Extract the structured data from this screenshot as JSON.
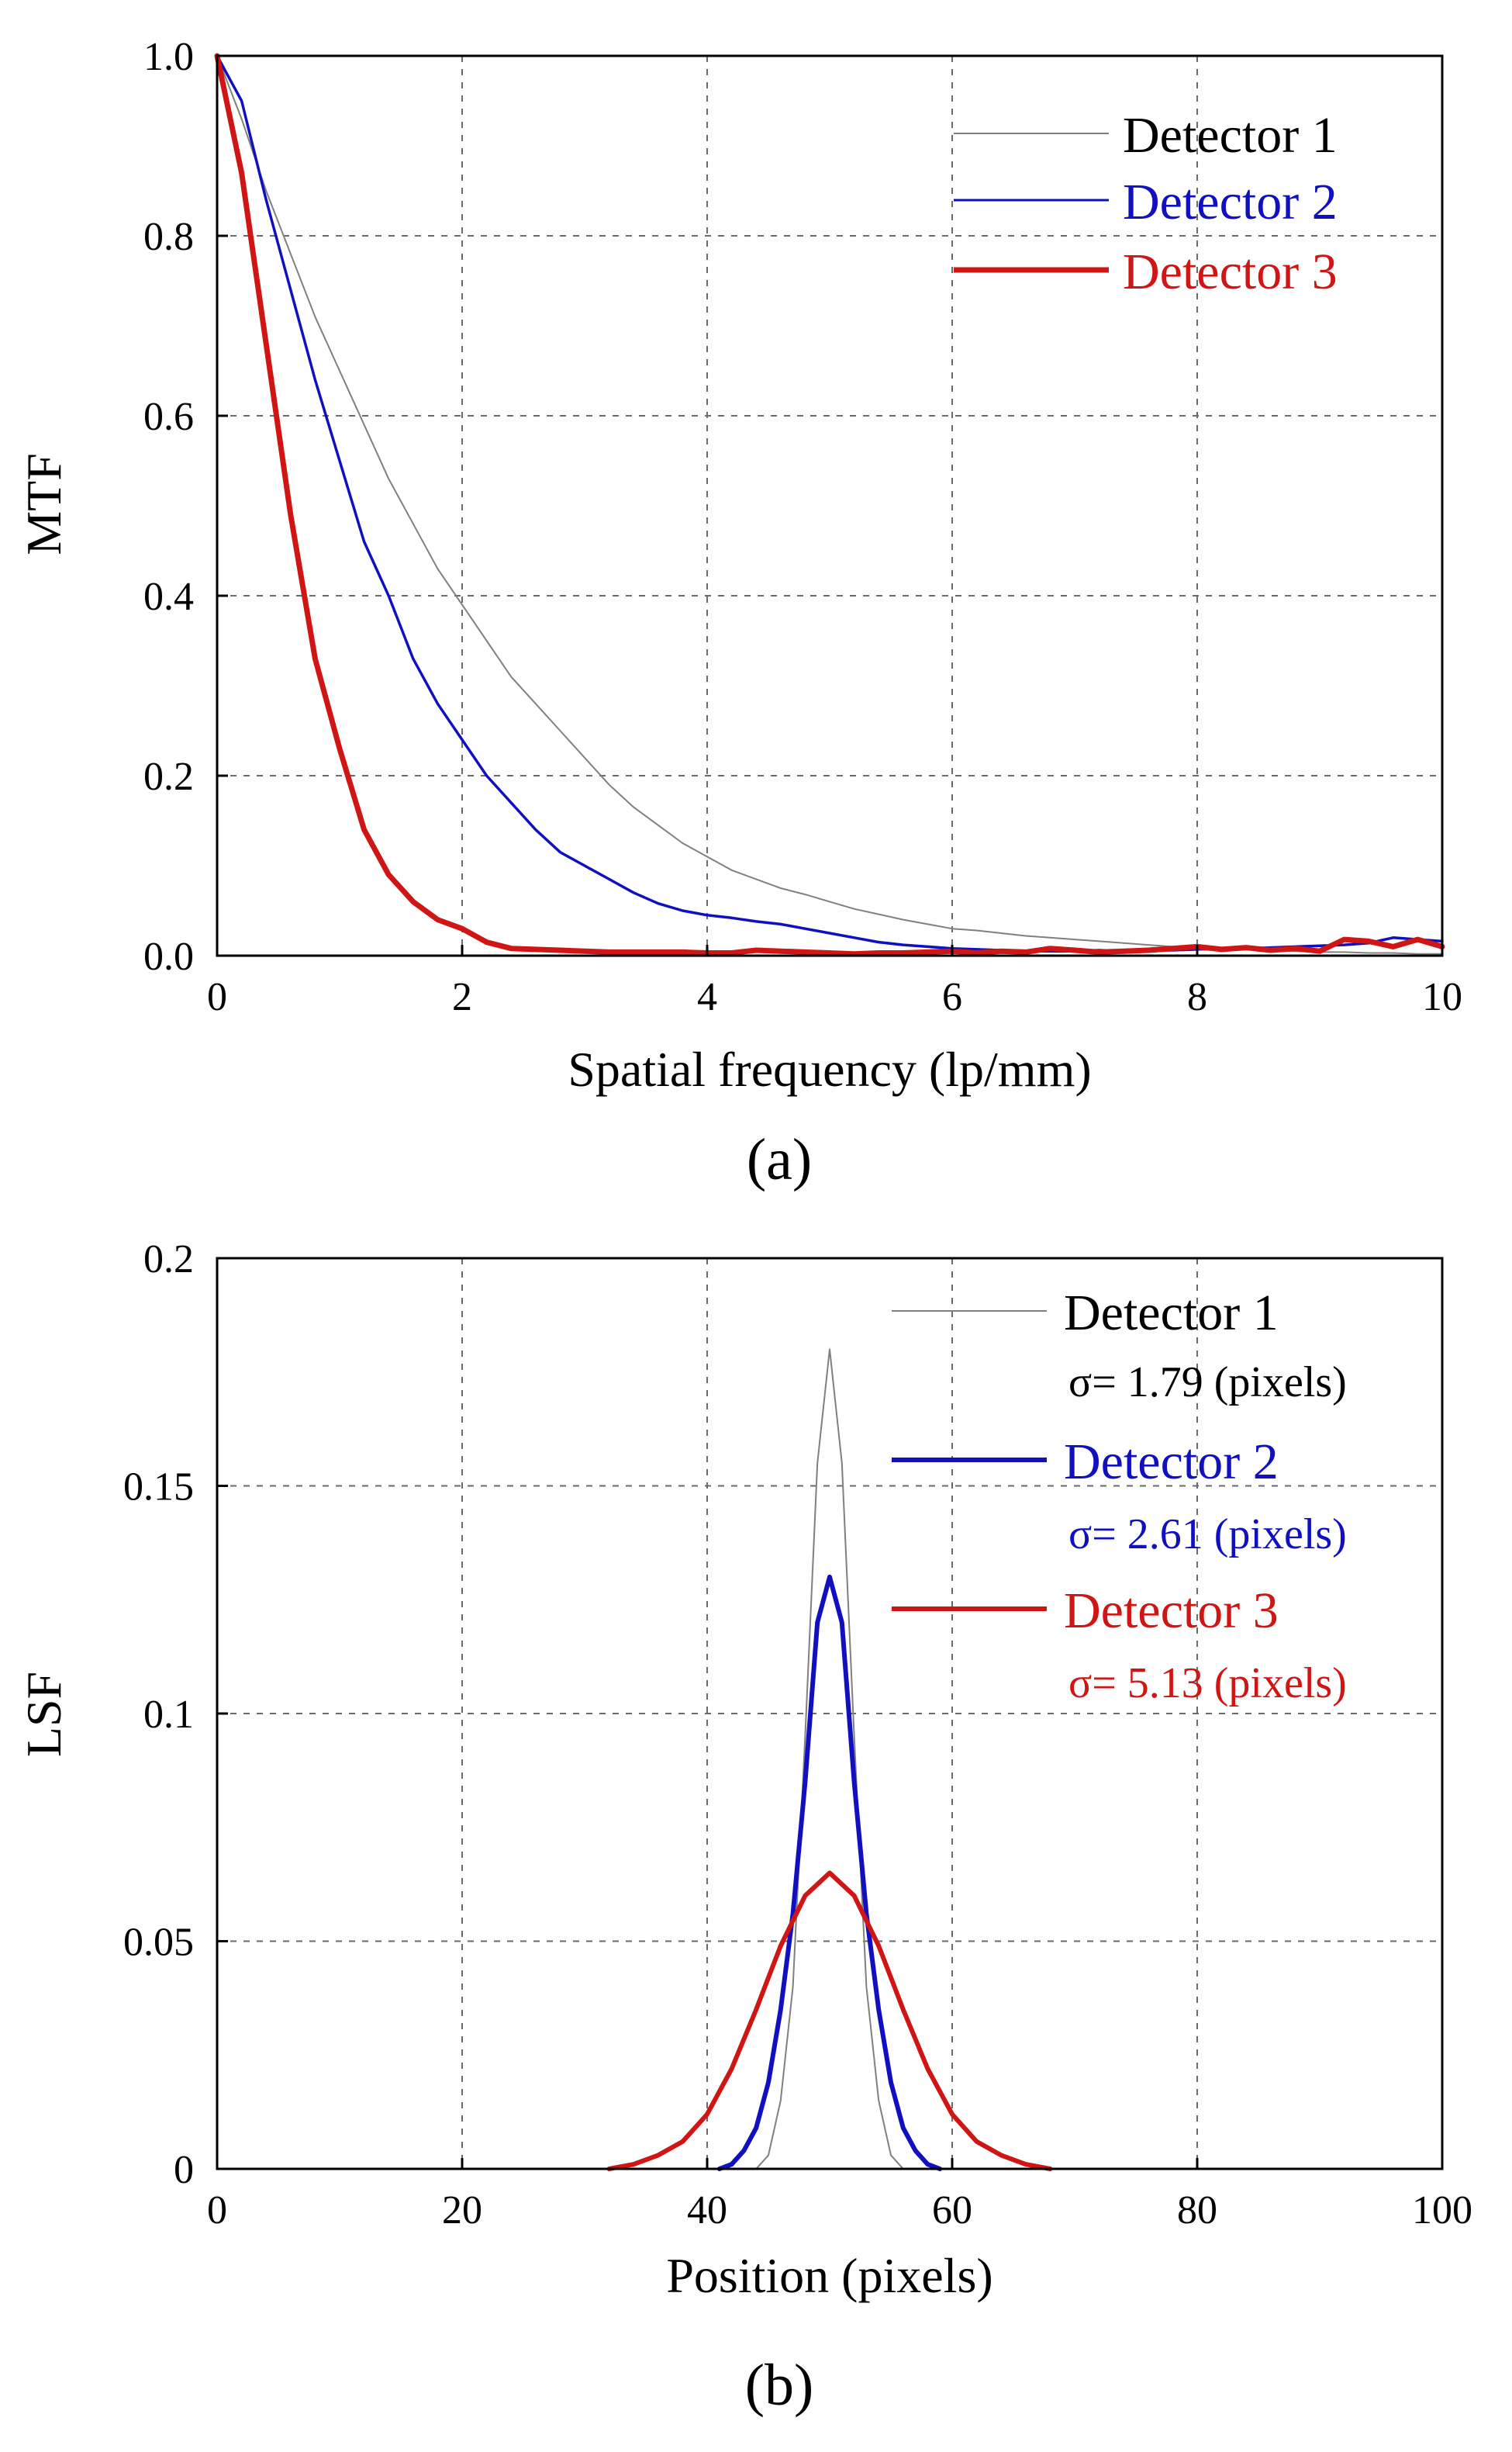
{
  "colors": {
    "detector1": "#808080",
    "detector2": "#1010c0",
    "detector3": "#d01515"
  },
  "chart_data": [
    {
      "type": "line",
      "panel_label": "(a)",
      "xlabel": "Spatial frequency (lp/mm)",
      "ylabel": "MTF",
      "xlim": [
        0,
        10
      ],
      "ylim": [
        0,
        1
      ],
      "xticks": [
        0,
        2,
        4,
        6,
        8,
        10
      ],
      "xtick_labels": [
        "0",
        "2",
        "4",
        "6",
        "8",
        "10"
      ],
      "yticks": [
        0,
        0.2,
        0.4,
        0.6,
        0.8,
        1.0
      ],
      "ytick_labels": [
        "0.0",
        "0.2",
        "0.4",
        "0.6",
        "0.8",
        "1.0"
      ],
      "grid": true,
      "legend": "top-right",
      "series": [
        {
          "name": "Detector 1",
          "x": [
            0,
            0.2,
            0.4,
            0.6,
            0.8,
            1.0,
            1.2,
            1.4,
            1.6,
            1.8,
            2.0,
            2.2,
            2.4,
            2.6,
            2.8,
            3.0,
            3.2,
            3.4,
            3.6,
            3.8,
            4.0,
            4.2,
            4.4,
            4.6,
            4.8,
            5.0,
            5.2,
            5.4,
            5.6,
            5.8,
            6.0,
            6.2,
            6.4,
            6.6,
            6.8,
            7.0,
            7.2,
            7.4,
            7.6,
            7.8,
            8.0,
            8.2,
            8.4,
            8.6,
            8.8,
            9.0,
            9.2,
            9.4,
            9.6,
            9.8,
            10.0
          ],
          "y": [
            1.0,
            0.93,
            0.85,
            0.78,
            0.71,
            0.65,
            0.59,
            0.53,
            0.48,
            0.43,
            0.39,
            0.35,
            0.31,
            0.28,
            0.25,
            0.22,
            0.19,
            0.165,
            0.145,
            0.125,
            0.11,
            0.095,
            0.085,
            0.075,
            0.068,
            0.06,
            0.052,
            0.046,
            0.04,
            0.035,
            0.03,
            0.028,
            0.025,
            0.022,
            0.02,
            0.018,
            0.016,
            0.014,
            0.012,
            0.01,
            0.009,
            0.008,
            0.007,
            0.006,
            0.005,
            0.004,
            0.004,
            0.003,
            0.003,
            0.002,
            0.002
          ]
        },
        {
          "name": "Detector 2",
          "x": [
            0,
            0.2,
            0.4,
            0.6,
            0.8,
            1.0,
            1.2,
            1.4,
            1.6,
            1.8,
            2.0,
            2.2,
            2.4,
            2.6,
            2.8,
            3.0,
            3.2,
            3.4,
            3.6,
            3.8,
            4.0,
            4.2,
            4.4,
            4.6,
            4.8,
            5.0,
            5.2,
            5.4,
            5.6,
            5.8,
            6.0,
            6.2,
            6.4,
            6.6,
            6.8,
            7.0,
            7.2,
            7.4,
            7.6,
            7.8,
            8.0,
            8.2,
            8.4,
            8.6,
            8.8,
            9.0,
            9.2,
            9.4,
            9.6,
            9.8,
            10.0
          ],
          "y": [
            1.0,
            0.95,
            0.84,
            0.74,
            0.64,
            0.55,
            0.46,
            0.4,
            0.33,
            0.28,
            0.24,
            0.2,
            0.17,
            0.14,
            0.115,
            0.1,
            0.085,
            0.07,
            0.058,
            0.05,
            0.045,
            0.042,
            0.038,
            0.035,
            0.03,
            0.025,
            0.02,
            0.015,
            0.012,
            0.01,
            0.008,
            0.007,
            0.006,
            0.005,
            0.005,
            0.005,
            0.006,
            0.005,
            0.006,
            0.006,
            0.007,
            0.008,
            0.008,
            0.009,
            0.01,
            0.011,
            0.012,
            0.014,
            0.02,
            0.018,
            0.016
          ]
        },
        {
          "name": "Detector 3",
          "x": [
            0,
            0.2,
            0.4,
            0.6,
            0.8,
            1.0,
            1.2,
            1.4,
            1.6,
            1.8,
            2.0,
            2.2,
            2.4,
            2.6,
            2.8,
            3.0,
            3.2,
            3.4,
            3.6,
            3.8,
            4.0,
            4.2,
            4.4,
            4.6,
            4.8,
            5.0,
            5.2,
            5.4,
            5.6,
            5.8,
            6.0,
            6.2,
            6.4,
            6.6,
            6.8,
            7.0,
            7.2,
            7.4,
            7.6,
            7.8,
            8.0,
            8.2,
            8.4,
            8.6,
            8.8,
            9.0,
            9.2,
            9.4,
            9.6,
            9.8,
            10.0
          ],
          "y": [
            1.0,
            0.87,
            0.68,
            0.49,
            0.33,
            0.23,
            0.14,
            0.09,
            0.06,
            0.04,
            0.03,
            0.015,
            0.008,
            0.007,
            0.006,
            0.005,
            0.004,
            0.004,
            0.004,
            0.004,
            0.003,
            0.003,
            0.006,
            0.005,
            0.004,
            0.003,
            0.002,
            0.003,
            0.003,
            0.004,
            0.005,
            0.003,
            0.005,
            0.004,
            0.008,
            0.006,
            0.004,
            0.005,
            0.006,
            0.008,
            0.01,
            0.007,
            0.009,
            0.006,
            0.008,
            0.005,
            0.018,
            0.016,
            0.01,
            0.018,
            0.01
          ]
        }
      ]
    },
    {
      "type": "line",
      "panel_label": "(b)",
      "xlabel": "Position (pixels)",
      "ylabel": "LSF",
      "xlim": [
        0,
        100
      ],
      "ylim": [
        0,
        0.2
      ],
      "xticks": [
        0,
        20,
        40,
        60,
        80,
        100
      ],
      "xtick_labels": [
        "0",
        "20",
        "40",
        "60",
        "80",
        "100"
      ],
      "yticks": [
        0,
        0.05,
        0.1,
        0.15,
        0.2
      ],
      "ytick_labels": [
        "0",
        "0.05",
        "0.1",
        "0.15",
        "0.2"
      ],
      "grid": true,
      "legend": "top-right",
      "series": [
        {
          "name": "Detector 1",
          "sigma_label": "σ= 1.79 (pixels)",
          "x": [
            44,
            45,
            46,
            47,
            48,
            49,
            50,
            51,
            52,
            53,
            54,
            55,
            56
          ],
          "y": [
            0.0,
            0.003,
            0.015,
            0.04,
            0.095,
            0.155,
            0.18,
            0.155,
            0.095,
            0.04,
            0.015,
            0.003,
            0.0
          ]
        },
        {
          "name": "Detector 2",
          "sigma_label": "σ= 2.61 (pixels)",
          "x": [
            41,
            42,
            43,
            44,
            45,
            46,
            47,
            48,
            49,
            50,
            51,
            52,
            53,
            54,
            55,
            56,
            57,
            58,
            59
          ],
          "y": [
            0.0,
            0.001,
            0.004,
            0.009,
            0.019,
            0.035,
            0.056,
            0.085,
            0.12,
            0.13,
            0.12,
            0.085,
            0.056,
            0.035,
            0.019,
            0.009,
            0.004,
            0.001,
            0.0
          ]
        },
        {
          "name": "Detector 3",
          "sigma_label": "σ= 5.13 (pixels)",
          "x": [
            32,
            34,
            36,
            38,
            40,
            42,
            44,
            46,
            48,
            50,
            52,
            54,
            56,
            58,
            60,
            62,
            64,
            66,
            68
          ],
          "y": [
            0.0,
            0.001,
            0.003,
            0.006,
            0.012,
            0.022,
            0.035,
            0.049,
            0.06,
            0.065,
            0.06,
            0.049,
            0.035,
            0.022,
            0.012,
            0.006,
            0.003,
            0.001,
            0.0
          ]
        }
      ]
    }
  ]
}
